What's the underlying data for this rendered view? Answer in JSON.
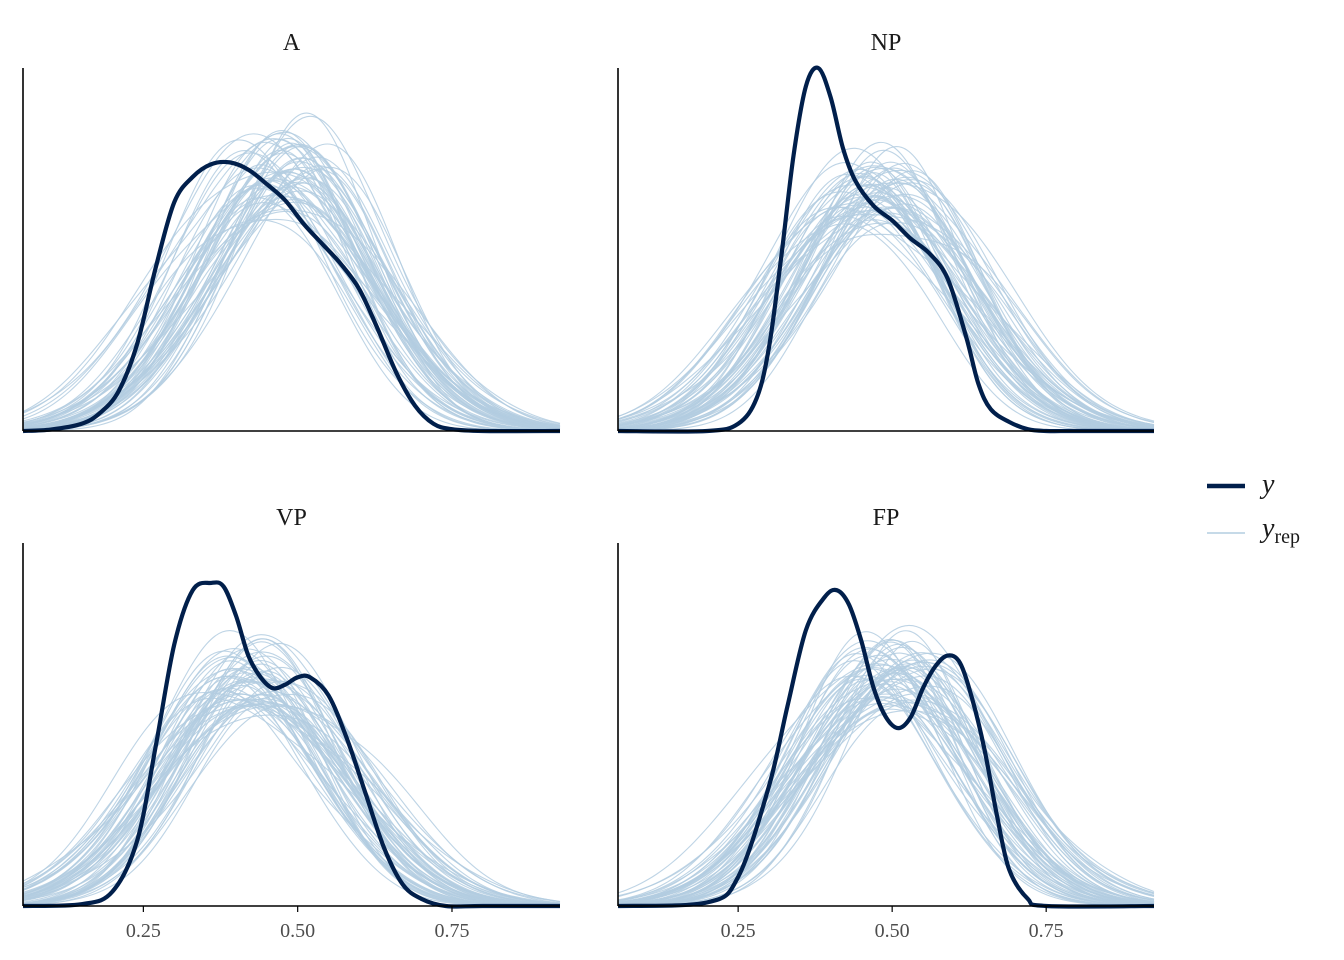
{
  "colors": {
    "y": "#011f4b",
    "yrep": "#b3cde0",
    "axis": "#000000"
  },
  "legend": {
    "y_label": "y",
    "yrep_label": "y",
    "yrep_sub": "rep"
  },
  "chart_data": {
    "type": "line",
    "subtype": "posterior-predictive-density-overlay",
    "x_ticks": [
      "0.25",
      "0.50",
      "0.75"
    ],
    "xlim": [
      0.055,
      0.925
    ],
    "y_axis_labels": false,
    "grid": false,
    "legend_position": "right",
    "yrep_draws_shown": 60,
    "panels": [
      {
        "title": "A",
        "y_x": [
          0.055,
          0.1,
          0.15,
          0.18,
          0.21,
          0.24,
          0.27,
          0.3,
          0.33,
          0.36,
          0.39,
          0.42,
          0.45,
          0.48,
          0.51,
          0.54,
          0.57,
          0.6,
          0.63,
          0.66,
          0.69,
          0.72,
          0.75,
          0.8,
          0.925
        ],
        "y_density": [
          0.0,
          0.004,
          0.02,
          0.05,
          0.11,
          0.24,
          0.45,
          0.63,
          0.7,
          0.735,
          0.74,
          0.72,
          0.68,
          0.635,
          0.57,
          0.515,
          0.46,
          0.39,
          0.28,
          0.16,
          0.07,
          0.02,
          0.005,
          0.0,
          0.0
        ],
        "yrep_center": 0.48,
        "yrep_sd": 0.14,
        "yrep_peak": 0.74
      },
      {
        "title": "NP",
        "y_x": [
          0.055,
          0.2,
          0.25,
          0.28,
          0.3,
          0.32,
          0.34,
          0.36,
          0.38,
          0.4,
          0.42,
          0.44,
          0.47,
          0.5,
          0.53,
          0.56,
          0.59,
          0.62,
          0.64,
          0.66,
          0.69,
          0.72,
          0.75,
          0.8,
          0.925
        ],
        "y_density": [
          0.0,
          0.0,
          0.02,
          0.09,
          0.23,
          0.48,
          0.76,
          0.95,
          1.0,
          0.92,
          0.78,
          0.69,
          0.62,
          0.58,
          0.53,
          0.49,
          0.42,
          0.26,
          0.13,
          0.06,
          0.025,
          0.005,
          0.0,
          0.0,
          0.0
        ],
        "yrep_center": 0.47,
        "yrep_sd": 0.14,
        "yrep_peak": 0.69
      },
      {
        "title": "VP",
        "y_x": [
          0.055,
          0.15,
          0.2,
          0.24,
          0.27,
          0.3,
          0.33,
          0.36,
          0.38,
          0.4,
          0.42,
          0.44,
          0.46,
          0.48,
          0.5,
          0.52,
          0.55,
          0.58,
          0.61,
          0.64,
          0.67,
          0.7,
          0.74,
          0.8,
          0.925
        ],
        "y_density": [
          0.0,
          0.005,
          0.04,
          0.18,
          0.44,
          0.72,
          0.87,
          0.89,
          0.88,
          0.8,
          0.69,
          0.63,
          0.6,
          0.61,
          0.63,
          0.63,
          0.58,
          0.46,
          0.31,
          0.16,
          0.06,
          0.02,
          0.0,
          0.0,
          0.0
        ],
        "yrep_center": 0.43,
        "yrep_sd": 0.14,
        "yrep_peak": 0.65
      },
      {
        "title": "FP",
        "y_x": [
          0.055,
          0.2,
          0.25,
          0.3,
          0.33,
          0.36,
          0.39,
          0.41,
          0.43,
          0.45,
          0.47,
          0.49,
          0.51,
          0.53,
          0.55,
          0.57,
          0.59,
          0.61,
          0.63,
          0.65,
          0.67,
          0.69,
          0.72,
          0.75,
          0.925
        ],
        "y_density": [
          0.0,
          0.01,
          0.08,
          0.33,
          0.55,
          0.76,
          0.85,
          0.87,
          0.83,
          0.73,
          0.6,
          0.52,
          0.49,
          0.52,
          0.6,
          0.66,
          0.69,
          0.67,
          0.57,
          0.43,
          0.25,
          0.1,
          0.02,
          0.0,
          0.0
        ],
        "yrep_center": 0.49,
        "yrep_sd": 0.14,
        "yrep_peak": 0.67
      }
    ]
  }
}
